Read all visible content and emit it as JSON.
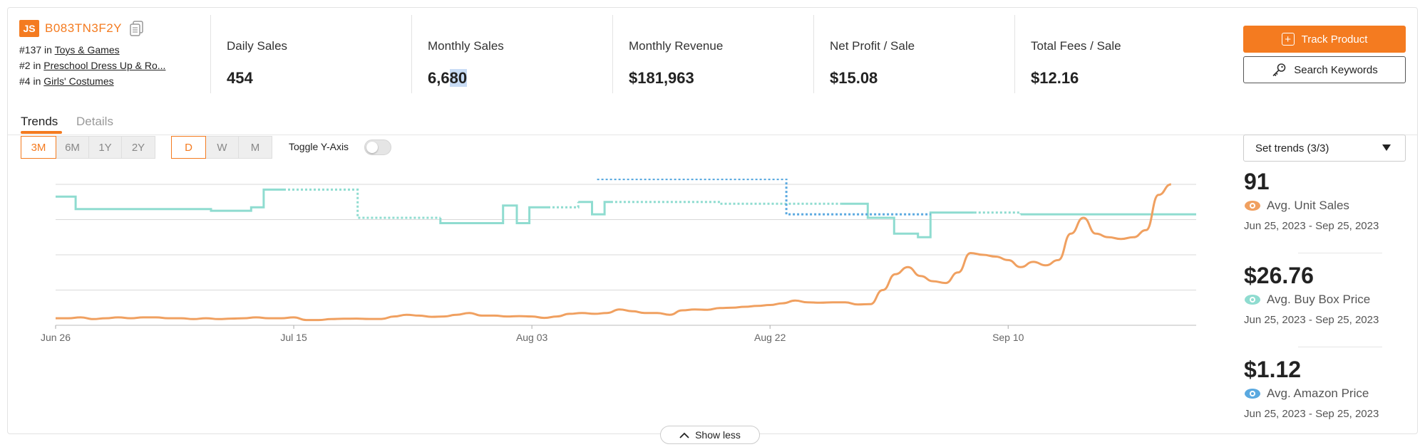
{
  "product": {
    "logo": "JS",
    "asin": "B083TN3F2Y",
    "ranks": [
      {
        "rank": "#137",
        "in": "in",
        "category": "Toys & Games"
      },
      {
        "rank": "#2",
        "in": "in",
        "category": "Preschool Dress Up & Ro..."
      },
      {
        "rank": "#4",
        "in": "in",
        "category": "Girls' Costumes"
      }
    ]
  },
  "stats": [
    {
      "label": "Daily Sales",
      "value": "454"
    },
    {
      "label": "Monthly Sales",
      "value_a": "6,6",
      "value_b": "80"
    },
    {
      "label": "Monthly Revenue",
      "value": "$181,963"
    },
    {
      "label": "Net Profit / Sale",
      "value": "$15.08"
    },
    {
      "label": "Total Fees / Sale",
      "value": "$12.16"
    }
  ],
  "actions": {
    "track": "Track Product",
    "keywords": "Search Keywords"
  },
  "tabs": {
    "trends": "Trends",
    "details": "Details"
  },
  "ranges": [
    "3M",
    "6M",
    "1Y",
    "2Y"
  ],
  "intervals": [
    "D",
    "W",
    "M"
  ],
  "toggle_label": "Toggle Y-Axis",
  "set_trends": "Set trends (3/3)",
  "summary": [
    {
      "value": "91",
      "label": "Avg. Unit Sales",
      "range": "Jun 25, 2023 - Sep 25, 2023",
      "color": "#f0a060"
    },
    {
      "value": "$26.76",
      "label": "Avg. Buy Box Price",
      "range": "Jun 25, 2023 - Sep 25, 2023",
      "color": "#8fdcd0"
    },
    {
      "value": "$1.12",
      "label": "Avg. Amazon Price",
      "range": "Jun 25, 2023 - Sep 25, 2023",
      "color": "#5aa9e0"
    }
  ],
  "show_less": "Show less",
  "colors": {
    "accent": "#f47b20",
    "unit_sales": "#f0a060",
    "buy_box": "#8fdcd0",
    "amazon": "#5aa9e0"
  },
  "chart_data": {
    "type": "line",
    "x_ticks": [
      "Jun 26",
      "Jul 15",
      "Aug 03",
      "Aug 22",
      "Sep 10"
    ],
    "x_range_days": [
      0,
      91
    ],
    "tick_days": [
      0,
      19,
      38,
      57,
      76
    ],
    "grid": true,
    "series": [
      {
        "name": "Avg. Unit Sales",
        "style": "solid",
        "points": [
          [
            0,
            0.04
          ],
          [
            1,
            0.04
          ],
          [
            2,
            0.045
          ],
          [
            3,
            0.035
          ],
          [
            4,
            0.04
          ],
          [
            5,
            0.045
          ],
          [
            6,
            0.04
          ],
          [
            7,
            0.045
          ],
          [
            8,
            0.045
          ],
          [
            9,
            0.04
          ],
          [
            10,
            0.04
          ],
          [
            11,
            0.035
          ],
          [
            12,
            0.04
          ],
          [
            13,
            0.035
          ],
          [
            14,
            0.038
          ],
          [
            15,
            0.04
          ],
          [
            16,
            0.045
          ],
          [
            17,
            0.04
          ],
          [
            18,
            0.04
          ],
          [
            19,
            0.045
          ],
          [
            20,
            0.03
          ],
          [
            21,
            0.03
          ],
          [
            22,
            0.035
          ],
          [
            23,
            0.037
          ],
          [
            24,
            0.038
          ],
          [
            25,
            0.036
          ],
          [
            26,
            0.036
          ],
          [
            27,
            0.05
          ],
          [
            28,
            0.06
          ],
          [
            29,
            0.055
          ],
          [
            30,
            0.048
          ],
          [
            31,
            0.05
          ],
          [
            32,
            0.06
          ],
          [
            33,
            0.07
          ],
          [
            34,
            0.055
          ],
          [
            35,
            0.055
          ],
          [
            36,
            0.05
          ],
          [
            37,
            0.052
          ],
          [
            38,
            0.05
          ],
          [
            39,
            0.042
          ],
          [
            40,
            0.05
          ],
          [
            41,
            0.065
          ],
          [
            42,
            0.07
          ],
          [
            43,
            0.065
          ],
          [
            44,
            0.07
          ],
          [
            45,
            0.09
          ],
          [
            46,
            0.08
          ],
          [
            47,
            0.07
          ],
          [
            48,
            0.07
          ],
          [
            49,
            0.06
          ],
          [
            50,
            0.085
          ],
          [
            51,
            0.09
          ],
          [
            52,
            0.088
          ],
          [
            53,
            0.098
          ],
          [
            54,
            0.1
          ],
          [
            55,
            0.105
          ],
          [
            56,
            0.11
          ],
          [
            57,
            0.115
          ],
          [
            58,
            0.125
          ],
          [
            59,
            0.14
          ],
          [
            60,
            0.13
          ],
          [
            61,
            0.128
          ],
          [
            62,
            0.13
          ],
          [
            63,
            0.13
          ],
          [
            64,
            0.118
          ],
          [
            65,
            0.12
          ],
          [
            66,
            0.2
          ],
          [
            67,
            0.29
          ],
          [
            68,
            0.33
          ],
          [
            69,
            0.28
          ],
          [
            70,
            0.25
          ],
          [
            71,
            0.24
          ],
          [
            72,
            0.3
          ],
          [
            73,
            0.41
          ],
          [
            74,
            0.4
          ],
          [
            75,
            0.39
          ],
          [
            76,
            0.37
          ],
          [
            77,
            0.33
          ],
          [
            78,
            0.36
          ],
          [
            79,
            0.34
          ],
          [
            80,
            0.37
          ],
          [
            81,
            0.52
          ],
          [
            82,
            0.61
          ],
          [
            83,
            0.52
          ],
          [
            84,
            0.5
          ],
          [
            85,
            0.49
          ],
          [
            86,
            0.5
          ],
          [
            87,
            0.54
          ],
          [
            88,
            0.74
          ],
          [
            89,
            0.8
          ]
        ]
      },
      {
        "name": "Avg. Buy Box Price",
        "style": "mixed",
        "segments": [
          {
            "dash": false,
            "points": [
              [
                0,
                0.73
              ],
              [
                1.6,
                0.73
              ],
              [
                1.6,
                0.66
              ],
              [
                12.4,
                0.66
              ],
              [
                12.4,
                0.65
              ],
              [
                15.6,
                0.65
              ],
              [
                15.6,
                0.67
              ],
              [
                16.6,
                0.67
              ],
              [
                16.6,
                0.77
              ],
              [
                18.2,
                0.77
              ]
            ]
          },
          {
            "dash": true,
            "points": [
              [
                18.2,
                0.77
              ],
              [
                24.1,
                0.77
              ],
              [
                24.1,
                0.61
              ],
              [
                30.7,
                0.61
              ]
            ]
          },
          {
            "dash": false,
            "points": [
              [
                30.7,
                0.61
              ],
              [
                30.7,
                0.58
              ],
              [
                35.7,
                0.58
              ],
              [
                35.7,
                0.68
              ],
              [
                36.8,
                0.68
              ],
              [
                36.8,
                0.58
              ],
              [
                37.8,
                0.58
              ],
              [
                37.8,
                0.67
              ],
              [
                39.3,
                0.67
              ]
            ]
          },
          {
            "dash": true,
            "points": [
              [
                39.3,
                0.67
              ],
              [
                41.7,
                0.67
              ],
              [
                41.7,
                0.7
              ]
            ]
          },
          {
            "dash": false,
            "points": [
              [
                41.7,
                0.7
              ],
              [
                42.8,
                0.7
              ],
              [
                42.8,
                0.63
              ],
              [
                43.8,
                0.63
              ],
              [
                43.8,
                0.7
              ],
              [
                44.3,
                0.7
              ]
            ]
          },
          {
            "dash": true,
            "points": [
              [
                44.3,
                0.7
              ],
              [
                53,
                0.7
              ],
              [
                53,
                0.69
              ],
              [
                62.7,
                0.69
              ]
            ]
          },
          {
            "dash": false,
            "points": [
              [
                62.7,
                0.69
              ],
              [
                64.8,
                0.69
              ],
              [
                64.8,
                0.61
              ],
              [
                66.9,
                0.61
              ],
              [
                66.9,
                0.52
              ],
              [
                68.8,
                0.52
              ],
              [
                68.8,
                0.5
              ],
              [
                69.8,
                0.5
              ],
              [
                69.8,
                0.64
              ],
              [
                73.3,
                0.64
              ]
            ]
          },
          {
            "dash": true,
            "points": [
              [
                73.3,
                0.64
              ],
              [
                77,
                0.64
              ],
              [
                77,
                0.63
              ]
            ]
          },
          {
            "dash": false,
            "points": [
              [
                77,
                0.63
              ],
              [
                91,
                0.63
              ]
            ]
          }
        ]
      },
      {
        "name": "Avg. Amazon Price",
        "style": "dotted",
        "points": [
          [
            43.2,
            0.83
          ],
          [
            58.3,
            0.83
          ],
          [
            58.3,
            0.63
          ],
          [
            69.8,
            0.63
          ]
        ]
      }
    ]
  }
}
